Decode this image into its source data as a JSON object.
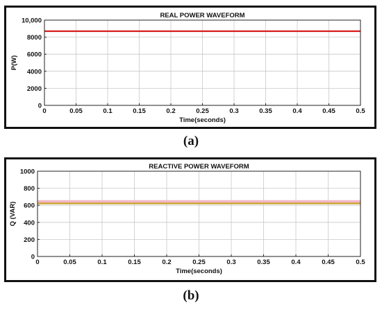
{
  "chart_data": [
    {
      "type": "line",
      "title": "REAL POWER WAVEFORM",
      "xlabel": "Time(seconds)",
      "ylabel": "P(W)",
      "xlim": [
        0,
        0.5
      ],
      "ylim": [
        0,
        10000
      ],
      "x_ticks": [
        0,
        0.05,
        0.1,
        0.15,
        0.2,
        0.25,
        0.3,
        0.35,
        0.4,
        0.45,
        0.5
      ],
      "x_tick_labels": [
        "0",
        "0.05",
        "0.1",
        "0.15",
        "0.2",
        "0.25",
        "0.3",
        "0.35",
        "0.4",
        "0.45",
        "0.5"
      ],
      "y_ticks": [
        0,
        2000,
        4000,
        6000,
        8000,
        10000
      ],
      "y_tick_labels": [
        "0",
        "2000",
        "4000",
        "6000",
        "8000",
        "10,000"
      ],
      "grid": true,
      "series": [
        {
          "color": "#d81b1b",
          "x": [
            0,
            0.5
          ],
          "y": [
            8700,
            8700
          ]
        }
      ],
      "caption": "(a)"
    },
    {
      "type": "line",
      "title": "REACTIVE POWER WAVEFORM",
      "xlabel": "Time(seconds)",
      "ylabel": "Q (VAR)",
      "xlim": [
        0,
        0.5
      ],
      "ylim": [
        0,
        1000
      ],
      "x_ticks": [
        0,
        0.05,
        0.1,
        0.15,
        0.2,
        0.25,
        0.3,
        0.35,
        0.4,
        0.45,
        0.5
      ],
      "x_tick_labels": [
        "0",
        "0.05",
        "0.1",
        "0.15",
        "0.2",
        "0.25",
        "0.3",
        "0.35",
        "0.4",
        "0.45",
        "0.5"
      ],
      "y_ticks": [
        0,
        200,
        400,
        600,
        800,
        1000
      ],
      "y_tick_labels": [
        "0",
        "200",
        "400",
        "600",
        "800",
        "1000"
      ],
      "grid": true,
      "series": [
        {
          "color": "#f2b8c8",
          "x": [
            0,
            0.5
          ],
          "y": [
            640,
            640
          ]
        },
        {
          "color": "#c9a227",
          "x": [
            0,
            0.5
          ],
          "y": [
            622,
            622
          ]
        }
      ],
      "caption": "(b)"
    }
  ]
}
